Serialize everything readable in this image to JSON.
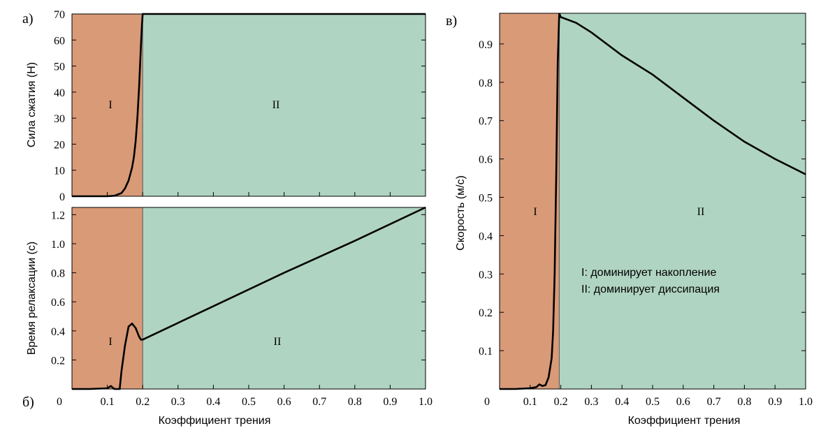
{
  "colors": {
    "region_I": "#d99a78",
    "region_II": "#b0d4c2",
    "curve": "#000000"
  },
  "panel_labels": {
    "a": "а)",
    "b": "б)",
    "c": "в)"
  },
  "legend": {
    "line1": "I:  доминирует накопление",
    "line2": "II: доминирует диссипация"
  },
  "chart_data": [
    {
      "id": "a",
      "type": "line",
      "ylabel": "Сила сжатия (Н)",
      "xlabel": "",
      "xlim": [
        0,
        1.0
      ],
      "ylim": [
        0,
        70
      ],
      "yticks": [
        0,
        10,
        20,
        30,
        40,
        50,
        60,
        70
      ],
      "ytick_labels": [
        "0",
        "10",
        "20",
        "30",
        "40",
        "50",
        "60",
        "70"
      ],
      "regions": [
        {
          "label": "I",
          "x_from": 0,
          "x_to": 0.2,
          "color": "#d99a78"
        },
        {
          "label": "II",
          "x_from": 0.2,
          "x_to": 1.0,
          "color": "#b0d4c2"
        }
      ],
      "x": [
        0,
        0.05,
        0.1,
        0.12,
        0.14,
        0.15,
        0.16,
        0.17,
        0.175,
        0.18,
        0.185,
        0.19,
        0.195,
        0.198,
        0.2,
        0.25,
        0.5,
        0.75,
        1.0
      ],
      "y": [
        0,
        0,
        0,
        0.2,
        1.2,
        3,
        6,
        11,
        15,
        21,
        30,
        42,
        58,
        66,
        70,
        70,
        70,
        70,
        70
      ]
    },
    {
      "id": "b",
      "type": "line",
      "ylabel": "Время релаксации (с)",
      "xlabel": "Коэффициент трения",
      "xlim": [
        0,
        1.0
      ],
      "ylim": [
        0,
        1.25
      ],
      "yticks": [
        0.2,
        0.4,
        0.6,
        0.8,
        1.0,
        1.2
      ],
      "ytick_labels": [
        "0.2",
        "0.4",
        "0.6",
        "0.8",
        "1.0",
        "1.2"
      ],
      "xticks": [
        0,
        0.1,
        0.2,
        0.3,
        0.4,
        0.5,
        0.6,
        0.7,
        0.8,
        0.9,
        1.0
      ],
      "xtick_labels": [
        "0",
        "0.1",
        "0.2",
        "0.3",
        "0.4",
        "0.5",
        "0.6",
        "0.7",
        "0.8",
        "0.9",
        "1.0"
      ],
      "regions": [
        {
          "label": "I",
          "x_from": 0,
          "x_to": 0.2,
          "color": "#d99a78"
        },
        {
          "label": "II",
          "x_from": 0.2,
          "x_to": 1.0,
          "color": "#b0d4c2"
        }
      ],
      "x": [
        0,
        0.05,
        0.1,
        0.11,
        0.12,
        0.135,
        0.14,
        0.15,
        0.16,
        0.17,
        0.18,
        0.19,
        0.195,
        0.2,
        0.4,
        0.6,
        0.8,
        1.0
      ],
      "y": [
        0,
        0,
        0.005,
        0.02,
        0,
        0,
        0.12,
        0.3,
        0.43,
        0.45,
        0.42,
        0.36,
        0.34,
        0.34,
        0.57,
        0.8,
        1.02,
        1.25
      ]
    },
    {
      "id": "c",
      "type": "line",
      "ylabel": "Скорость (м/с)",
      "xlabel": "Коэффициент трения",
      "xlim": [
        0,
        1.0
      ],
      "ylim": [
        0,
        0.98
      ],
      "yticks": [
        0.1,
        0.2,
        0.3,
        0.4,
        0.5,
        0.6,
        0.7,
        0.8,
        0.9
      ],
      "ytick_labels": [
        "0.1",
        "0.2",
        "0.3",
        "0.4",
        "0.5",
        "0.6",
        "0.7",
        "0.8",
        "0.9"
      ],
      "xticks": [
        0,
        0.1,
        0.2,
        0.3,
        0.4,
        0.5,
        0.6,
        0.7,
        0.8,
        0.9,
        1.0
      ],
      "xtick_labels": [
        "0",
        "0.1",
        "0.2",
        "0.3",
        "0.4",
        "0.5",
        "0.6",
        "0.7",
        "0.8",
        "0.9",
        "1.0"
      ],
      "regions": [
        {
          "label": "I",
          "x_from": 0,
          "x_to": 0.195,
          "color": "#d99a78"
        },
        {
          "label": "II",
          "x_from": 0.195,
          "x_to": 1.0,
          "color": "#b0d4c2"
        }
      ],
      "x": [
        0,
        0.05,
        0.1,
        0.12,
        0.13,
        0.14,
        0.15,
        0.16,
        0.17,
        0.175,
        0.18,
        0.185,
        0.19,
        0.195,
        0.2,
        0.25,
        0.3,
        0.4,
        0.5,
        0.6,
        0.7,
        0.8,
        0.9,
        1.0
      ],
      "y": [
        0,
        0,
        0.002,
        0.005,
        0.012,
        0.008,
        0.01,
        0.03,
        0.08,
        0.15,
        0.3,
        0.55,
        0.85,
        0.98,
        0.97,
        0.955,
        0.93,
        0.87,
        0.82,
        0.76,
        0.7,
        0.645,
        0.6,
        0.56
      ]
    }
  ]
}
